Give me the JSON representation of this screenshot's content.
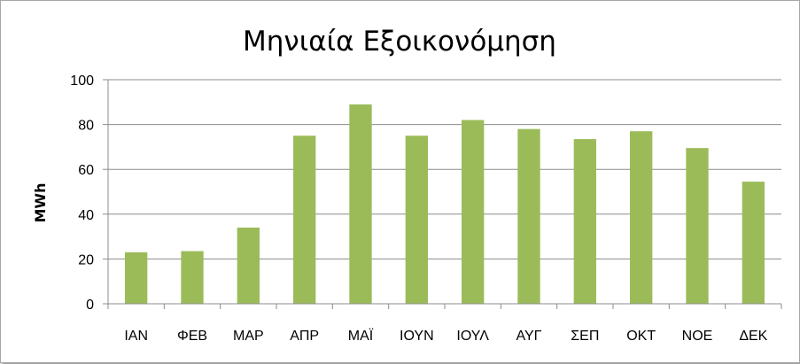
{
  "chart_data": {
    "type": "bar",
    "title": "Μηνιαία Εξοικονόμηση",
    "xlabel": "",
    "ylabel": "MWh",
    "ylim": [
      0,
      100
    ],
    "yticks": [
      0,
      20,
      40,
      60,
      80,
      100
    ],
    "grid": true,
    "legend": "none",
    "bar_color": "#9bbb59",
    "categories": [
      "ΙΑΝ",
      "ΦΕΒ",
      "ΜΑΡ",
      "ΑΠΡ",
      "ΜΑΪ",
      "ΙΟΥΝ",
      "ΙΟΥΛ",
      "ΑΥΓ",
      "ΣΕΠ",
      "ΟΚΤ",
      "ΝΟΕ",
      "ΔΕΚ"
    ],
    "values": [
      23,
      23.5,
      34,
      75,
      89,
      75,
      82,
      78,
      73.5,
      77,
      69.5,
      54.5
    ]
  }
}
